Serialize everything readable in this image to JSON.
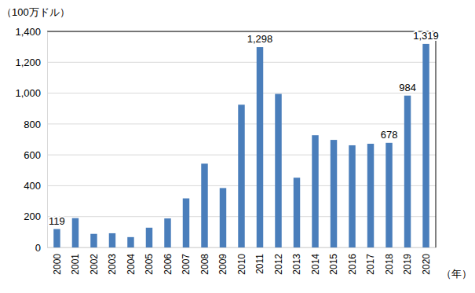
{
  "chart_data": {
    "type": "bar",
    "y_label": "（100万ドル）",
    "x_label": "（年）",
    "categories": [
      "2000",
      "2001",
      "2002",
      "2003",
      "2004",
      "2005",
      "2006",
      "2007",
      "2008",
      "2009",
      "2010",
      "2011",
      "2012",
      "2013",
      "2014",
      "2015",
      "2016",
      "2017",
      "2018",
      "2019",
      "2020"
    ],
    "values": [
      119,
      190,
      88,
      92,
      67,
      128,
      188,
      318,
      543,
      385,
      925,
      1298,
      995,
      452,
      727,
      697,
      662,
      672,
      678,
      984,
      1319
    ],
    "value_labels": [
      "119",
      null,
      null,
      null,
      null,
      null,
      null,
      null,
      null,
      null,
      null,
      "1,298",
      null,
      null,
      null,
      null,
      null,
      null,
      "678",
      "984",
      "1,319"
    ],
    "data_labels": true,
    "color": "#4a7ebb",
    "ylim": [
      0,
      1400
    ],
    "yticks": [
      0,
      200,
      400,
      600,
      800,
      {
        "value": 1000,
        "label": "1,000"
      },
      {
        "value": 1200,
        "label": "1,200"
      },
      {
        "value": 1400,
        "label": "1,400"
      }
    ],
    "grid": true
  }
}
